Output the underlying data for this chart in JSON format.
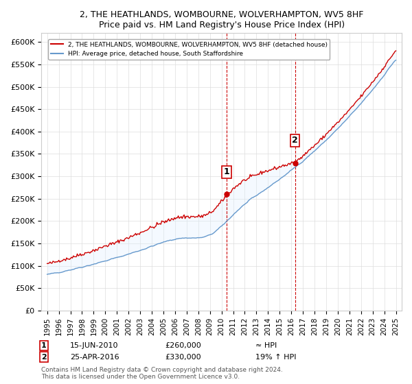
{
  "title": "2, THE HEATHLANDS, WOMBOURNE, WOLVERHAMPTON, WV5 8HF",
  "subtitle": "Price paid vs. HM Land Registry's House Price Index (HPI)",
  "ylabel_ticks": [
    "£0",
    "£50K",
    "£100K",
    "£150K",
    "£200K",
    "£250K",
    "£300K",
    "£350K",
    "£400K",
    "£450K",
    "£500K",
    "£550K",
    "£600K"
  ],
  "ytick_values": [
    0,
    50000,
    100000,
    150000,
    200000,
    250000,
    300000,
    350000,
    400000,
    450000,
    500000,
    550000,
    600000
  ],
  "xlim_start": 1994.5,
  "xlim_end": 2025.5,
  "ylim": [
    0,
    620000
  ],
  "purchase1_date": 2010.45,
  "purchase1_price": 260000,
  "purchase2_date": 2016.32,
  "purchase2_price": 330000,
  "legend_line1": "2, THE HEATHLANDS, WOMBOURNE, WOLVERHAMPTON, WV5 8HF (detached house)",
  "legend_line2": "HPI: Average price, detached house, South Staffordshire",
  "annotation1_label": "1",
  "annotation1_date": "15-JUN-2010",
  "annotation1_price": "£260,000",
  "annotation1_hpi": "≈ HPI",
  "annotation2_label": "2",
  "annotation2_date": "25-APR-2016",
  "annotation2_price": "£330,000",
  "annotation2_hpi": "19% ↑ HPI",
  "footer": "Contains HM Land Registry data © Crown copyright and database right 2024.\nThis data is licensed under the Open Government Licence v3.0.",
  "line_color_red": "#cc0000",
  "line_color_blue": "#6699cc",
  "shade_color": "#ddeeff",
  "dashed_line_color": "#cc0000",
  "background_color": "#ffffff"
}
